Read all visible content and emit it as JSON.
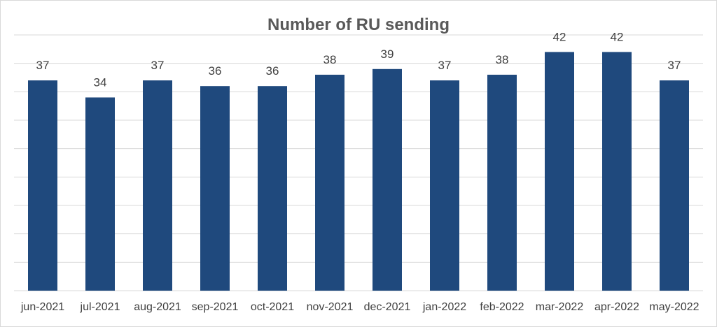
{
  "chart_data": {
    "type": "bar",
    "title": "Number of RU sending",
    "categories": [
      "jun-2021",
      "jul-2021",
      "aug-2021",
      "sep-2021",
      "oct-2021",
      "nov-2021",
      "dec-2021",
      "jan-2022",
      "feb-2022",
      "mar-2022",
      "apr-2022",
      "may-2022"
    ],
    "values": [
      37,
      34,
      37,
      36,
      36,
      38,
      39,
      37,
      38,
      42,
      42,
      37
    ],
    "ylim": [
      0,
      45
    ],
    "ytick_step": 5,
    "grid": true,
    "data_labels": true,
    "y_axis_labels_shown": false,
    "legend": "none",
    "colors": {
      "bar": "#1f497d",
      "grid": "#d9d9d9",
      "text": "#404040",
      "title": "#595959"
    }
  }
}
